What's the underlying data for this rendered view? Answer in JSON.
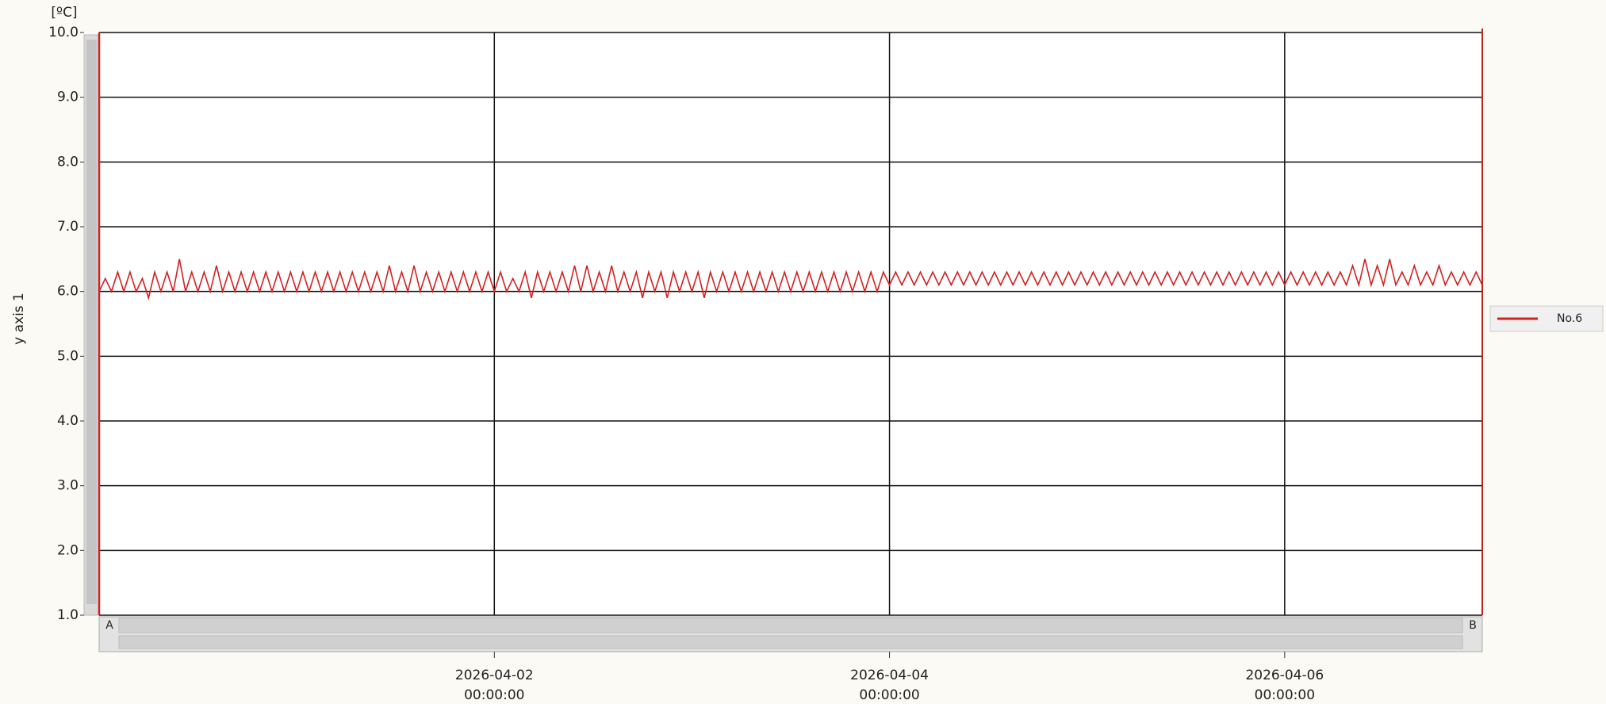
{
  "chart_data": {
    "type": "line",
    "y_unit": "[ºC]",
    "y_label": "y axis 1",
    "scrollbar": {
      "start_label": "A",
      "end_label": "B"
    },
    "xlim": [
      "2026-03-31 00:00:00",
      "2026-04-07 00:00:00"
    ],
    "xticks": [
      "2026-04-02 00:00:00",
      "2026-04-04 00:00:00",
      "2026-04-06 00:00:00"
    ],
    "ylim": [
      1,
      10
    ],
    "yticks": [
      {
        "value": 1,
        "label": "1.0"
      },
      {
        "value": 2,
        "label": "2.0"
      },
      {
        "value": 3,
        "label": "3.0"
      },
      {
        "value": 4,
        "label": "4.0"
      },
      {
        "value": 5,
        "label": "5.0"
      },
      {
        "value": 6,
        "label": "6.0"
      },
      {
        "value": 7,
        "label": "7.0"
      },
      {
        "value": 8,
        "label": "8.0"
      },
      {
        "value": 9,
        "label": "9.0"
      },
      {
        "value": 10,
        "label": "10.0"
      }
    ],
    "grid": true,
    "legend": "right",
    "x": [
      "2026-03-31 00:00:00",
      "2026-03-31 00:45:00",
      "2026-03-31 01:30:00",
      "2026-03-31 02:15:00",
      "2026-03-31 03:00:00",
      "2026-03-31 03:45:00",
      "2026-03-31 04:30:00",
      "2026-03-31 05:15:00",
      "2026-03-31 06:00:00",
      "2026-03-31 06:45:00",
      "2026-03-31 07:30:00",
      "2026-03-31 08:15:00",
      "2026-03-31 09:00:00",
      "2026-03-31 09:45:00",
      "2026-03-31 10:30:00",
      "2026-03-31 11:15:00",
      "2026-03-31 12:00:00",
      "2026-03-31 12:45:00",
      "2026-03-31 13:30:00",
      "2026-03-31 14:15:00",
      "2026-03-31 15:00:00",
      "2026-03-31 15:45:00",
      "2026-03-31 16:30:00",
      "2026-03-31 17:15:00",
      "2026-03-31 18:00:00",
      "2026-03-31 18:45:00",
      "2026-03-31 19:30:00",
      "2026-03-31 20:15:00",
      "2026-03-31 21:00:00",
      "2026-03-31 21:45:00",
      "2026-03-31 22:30:00",
      "2026-03-31 23:15:00",
      "2026-04-01 00:00:00",
      "2026-04-01 00:45:00",
      "2026-04-01 01:30:00",
      "2026-04-01 02:15:00",
      "2026-04-01 03:00:00",
      "2026-04-01 03:45:00",
      "2026-04-01 04:30:00",
      "2026-04-01 05:15:00",
      "2026-04-01 06:00:00",
      "2026-04-01 06:45:00",
      "2026-04-01 07:30:00",
      "2026-04-01 08:15:00",
      "2026-04-01 09:00:00",
      "2026-04-01 09:45:00",
      "2026-04-01 10:30:00",
      "2026-04-01 11:15:00",
      "2026-04-01 12:00:00",
      "2026-04-01 12:45:00",
      "2026-04-01 13:30:00",
      "2026-04-01 14:15:00",
      "2026-04-01 15:00:00",
      "2026-04-01 15:45:00",
      "2026-04-01 16:30:00",
      "2026-04-01 17:15:00",
      "2026-04-01 18:00:00",
      "2026-04-01 18:45:00",
      "2026-04-01 19:30:00",
      "2026-04-01 20:15:00",
      "2026-04-01 21:00:00",
      "2026-04-01 21:45:00",
      "2026-04-01 22:30:00",
      "2026-04-01 23:15:00",
      "2026-04-02 00:00:00",
      "2026-04-02 00:45:00",
      "2026-04-02 01:30:00",
      "2026-04-02 02:15:00",
      "2026-04-02 03:00:00",
      "2026-04-02 03:45:00",
      "2026-04-02 04:30:00",
      "2026-04-02 05:15:00",
      "2026-04-02 06:00:00",
      "2026-04-02 06:45:00",
      "2026-04-02 07:30:00",
      "2026-04-02 08:15:00",
      "2026-04-02 09:00:00",
      "2026-04-02 09:45:00",
      "2026-04-02 10:30:00",
      "2026-04-02 11:15:00",
      "2026-04-02 12:00:00",
      "2026-04-02 12:45:00",
      "2026-04-02 13:30:00",
      "2026-04-02 14:15:00",
      "2026-04-02 15:00:00",
      "2026-04-02 15:45:00",
      "2026-04-02 16:30:00",
      "2026-04-02 17:15:00",
      "2026-04-02 18:00:00",
      "2026-04-02 18:45:00",
      "2026-04-02 19:30:00",
      "2026-04-02 20:15:00",
      "2026-04-02 21:00:00",
      "2026-04-02 21:45:00",
      "2026-04-02 22:30:00",
      "2026-04-02 23:15:00",
      "2026-04-03 00:00:00",
      "2026-04-03 00:45:00",
      "2026-04-03 01:30:00",
      "2026-04-03 02:15:00",
      "2026-04-03 03:00:00",
      "2026-04-03 03:45:00",
      "2026-04-03 04:30:00",
      "2026-04-03 05:15:00",
      "2026-04-03 06:00:00",
      "2026-04-03 06:45:00",
      "2026-04-03 07:30:00",
      "2026-04-03 08:15:00",
      "2026-04-03 09:00:00",
      "2026-04-03 09:45:00",
      "2026-04-03 10:30:00",
      "2026-04-03 11:15:00",
      "2026-04-03 12:00:00",
      "2026-04-03 12:45:00",
      "2026-04-03 13:30:00",
      "2026-04-03 14:15:00",
      "2026-04-03 15:00:00",
      "2026-04-03 15:45:00",
      "2026-04-03 16:30:00",
      "2026-04-03 17:15:00",
      "2026-04-03 18:00:00",
      "2026-04-03 18:45:00",
      "2026-04-03 19:30:00",
      "2026-04-03 20:15:00",
      "2026-04-03 21:00:00",
      "2026-04-03 21:45:00",
      "2026-04-03 22:30:00",
      "2026-04-03 23:15:00",
      "2026-04-04 00:00:00",
      "2026-04-04 00:45:00",
      "2026-04-04 01:30:00",
      "2026-04-04 02:15:00",
      "2026-04-04 03:00:00",
      "2026-04-04 03:45:00",
      "2026-04-04 04:30:00",
      "2026-04-04 05:15:00",
      "2026-04-04 06:00:00",
      "2026-04-04 06:45:00",
      "2026-04-04 07:30:00",
      "2026-04-04 08:15:00",
      "2026-04-04 09:00:00",
      "2026-04-04 09:45:00",
      "2026-04-04 10:30:00",
      "2026-04-04 11:15:00",
      "2026-04-04 12:00:00",
      "2026-04-04 12:45:00",
      "2026-04-04 13:30:00",
      "2026-04-04 14:15:00",
      "2026-04-04 15:00:00",
      "2026-04-04 15:45:00",
      "2026-04-04 16:30:00",
      "2026-04-04 17:15:00",
      "2026-04-04 18:00:00",
      "2026-04-04 18:45:00",
      "2026-04-04 19:30:00",
      "2026-04-04 20:15:00",
      "2026-04-04 21:00:00",
      "2026-04-04 21:45:00",
      "2026-04-04 22:30:00",
      "2026-04-04 23:15:00",
      "2026-04-05 00:00:00",
      "2026-04-05 00:45:00",
      "2026-04-05 01:30:00",
      "2026-04-05 02:15:00",
      "2026-04-05 03:00:00",
      "2026-04-05 03:45:00",
      "2026-04-05 04:30:00",
      "2026-04-05 05:15:00",
      "2026-04-05 06:00:00",
      "2026-04-05 06:45:00",
      "2026-04-05 07:30:00",
      "2026-04-05 08:15:00",
      "2026-04-05 09:00:00",
      "2026-04-05 09:45:00",
      "2026-04-05 10:30:00",
      "2026-04-05 11:15:00",
      "2026-04-05 12:00:00",
      "2026-04-05 12:45:00",
      "2026-04-05 13:30:00",
      "2026-04-05 14:15:00",
      "2026-04-05 15:00:00",
      "2026-04-05 15:45:00",
      "2026-04-05 16:30:00",
      "2026-04-05 17:15:00",
      "2026-04-05 18:00:00",
      "2026-04-05 18:45:00",
      "2026-04-05 19:30:00",
      "2026-04-05 20:15:00",
      "2026-04-05 21:00:00",
      "2026-04-05 21:45:00",
      "2026-04-05 22:30:00",
      "2026-04-05 23:15:00",
      "2026-04-06 00:00:00",
      "2026-04-06 00:45:00",
      "2026-04-06 01:30:00",
      "2026-04-06 02:15:00",
      "2026-04-06 03:00:00",
      "2026-04-06 03:45:00",
      "2026-04-06 04:30:00",
      "2026-04-06 05:15:00",
      "2026-04-06 06:00:00",
      "2026-04-06 06:45:00",
      "2026-04-06 07:30:00",
      "2026-04-06 08:15:00",
      "2026-04-06 09:00:00",
      "2026-04-06 09:45:00",
      "2026-04-06 10:30:00",
      "2026-04-06 11:15:00",
      "2026-04-06 12:00:00",
      "2026-04-06 12:45:00",
      "2026-04-06 13:30:00",
      "2026-04-06 14:15:00",
      "2026-04-06 15:00:00",
      "2026-04-06 15:45:00",
      "2026-04-06 16:30:00",
      "2026-04-06 17:15:00",
      "2026-04-06 18:00:00",
      "2026-04-06 18:45:00",
      "2026-04-06 19:30:00",
      "2026-04-06 20:15:00",
      "2026-04-06 21:00:00",
      "2026-04-06 21:45:00",
      "2026-04-06 22:30:00",
      "2026-04-06 23:15:00",
      "2026-04-07 00:00:00"
    ],
    "series": [
      {
        "name": "No.6",
        "color": "#d42020",
        "values": [
          6.0,
          6.2,
          6.0,
          6.3,
          6.0,
          6.3,
          6.0,
          6.2,
          5.9,
          6.3,
          6.0,
          6.3,
          6.0,
          6.5,
          6.0,
          6.3,
          6.0,
          6.3,
          6.0,
          6.4,
          6.0,
          6.3,
          6.0,
          6.3,
          6.0,
          6.3,
          6.0,
          6.3,
          6.0,
          6.3,
          6.0,
          6.3,
          6.0,
          6.3,
          6.0,
          6.3,
          6.0,
          6.3,
          6.0,
          6.3,
          6.0,
          6.3,
          6.0,
          6.3,
          6.0,
          6.3,
          6.0,
          6.4,
          6.0,
          6.3,
          6.0,
          6.4,
          6.0,
          6.3,
          6.0,
          6.3,
          6.0,
          6.3,
          6.0,
          6.3,
          6.0,
          6.3,
          6.0,
          6.3,
          6.0,
          6.3,
          6.0,
          6.2,
          6.0,
          6.3,
          5.9,
          6.3,
          6.0,
          6.3,
          6.0,
          6.3,
          6.0,
          6.4,
          6.0,
          6.4,
          6.0,
          6.3,
          6.0,
          6.4,
          6.0,
          6.3,
          6.0,
          6.3,
          5.9,
          6.3,
          6.0,
          6.3,
          5.9,
          6.3,
          6.0,
          6.3,
          6.0,
          6.3,
          5.9,
          6.3,
          6.0,
          6.3,
          6.0,
          6.3,
          6.0,
          6.3,
          6.0,
          6.3,
          6.0,
          6.3,
          6.0,
          6.3,
          6.0,
          6.3,
          6.0,
          6.3,
          6.0,
          6.3,
          6.0,
          6.3,
          6.0,
          6.3,
          6.0,
          6.3,
          6.0,
          6.3,
          6.0,
          6.3,
          6.1,
          6.3,
          6.1,
          6.3,
          6.1,
          6.3,
          6.1,
          6.3,
          6.1,
          6.3,
          6.1,
          6.3,
          6.1,
          6.3,
          6.1,
          6.3,
          6.1,
          6.3,
          6.1,
          6.3,
          6.1,
          6.3,
          6.1,
          6.3,
          6.1,
          6.3,
          6.1,
          6.3,
          6.1,
          6.3,
          6.1,
          6.3,
          6.1,
          6.3,
          6.1,
          6.3,
          6.1,
          6.3,
          6.1,
          6.3,
          6.1,
          6.3,
          6.1,
          6.3,
          6.1,
          6.3,
          6.1,
          6.3,
          6.1,
          6.3,
          6.1,
          6.3,
          6.1,
          6.3,
          6.1,
          6.3,
          6.1,
          6.3,
          6.1,
          6.3,
          6.1,
          6.3,
          6.1,
          6.3,
          6.1,
          6.3,
          6.1,
          6.3,
          6.1,
          6.3,
          6.1,
          6.3,
          6.1,
          6.3,
          6.1,
          6.4,
          6.1,
          6.5,
          6.1,
          6.4,
          6.1,
          6.5,
          6.1,
          6.3,
          6.1,
          6.4,
          6.1,
          6.3,
          6.1,
          6.4,
          6.1,
          6.3,
          6.1,
          6.3,
          6.1,
          6.3,
          6.1
        ]
      }
    ]
  }
}
